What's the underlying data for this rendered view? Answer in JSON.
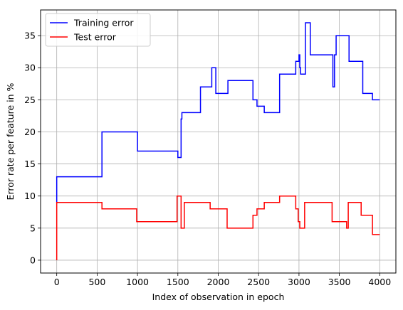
{
  "chart_data": {
    "type": "line",
    "title": "",
    "xlabel": "Index of observation in epoch",
    "ylabel": "Error rate per feature in %",
    "xlim": [
      -200,
      4200
    ],
    "ylim": [
      -2,
      39
    ],
    "xticks": [
      0,
      500,
      1000,
      1500,
      2000,
      2500,
      3000,
      3500,
      4000
    ],
    "yticks": [
      0,
      5,
      10,
      15,
      20,
      25,
      30,
      35
    ],
    "grid": true,
    "legend": "upper-left",
    "series": [
      {
        "name": "Training error",
        "color": "#0000ff",
        "x": [
          0,
          0,
          560,
          560,
          1000,
          1000,
          1500,
          1500,
          1540,
          1540,
          1550,
          1550,
          1780,
          1780,
          1920,
          1920,
          1970,
          1970,
          2120,
          2120,
          2430,
          2430,
          2480,
          2480,
          2570,
          2570,
          2760,
          2760,
          2960,
          2960,
          3000,
          3000,
          3010,
          3010,
          3020,
          3020,
          3080,
          3080,
          3140,
          3140,
          3420,
          3420,
          3440,
          3440,
          3460,
          3460,
          3620,
          3620,
          3790,
          3790,
          3910,
          3910,
          4000
        ],
        "y": [
          9,
          13,
          13,
          20,
          20,
          17,
          17,
          16,
          16,
          22,
          22,
          23,
          23,
          27,
          27,
          30,
          30,
          26,
          26,
          28,
          28,
          25,
          25,
          24,
          24,
          23,
          23,
          29,
          29,
          31,
          31,
          32,
          32,
          30,
          30,
          29,
          29,
          37,
          37,
          32,
          32,
          27,
          27,
          32,
          32,
          35,
          35,
          31,
          31,
          26,
          26,
          25,
          25
        ]
      },
      {
        "name": "Test error",
        "color": "#ff0000",
        "x": [
          0,
          0,
          560,
          560,
          990,
          990,
          1490,
          1490,
          1540,
          1540,
          1580,
          1580,
          1900,
          1900,
          2110,
          2110,
          2430,
          2430,
          2480,
          2480,
          2570,
          2570,
          2760,
          2760,
          2960,
          2960,
          2990,
          2990,
          3010,
          3010,
          3070,
          3070,
          3410,
          3410,
          3590,
          3590,
          3610,
          3610,
          3770,
          3770,
          3910,
          3910,
          4000
        ],
        "y": [
          0,
          9,
          9,
          8,
          8,
          6,
          6,
          10,
          10,
          5,
          5,
          9,
          9,
          8,
          8,
          5,
          5,
          7,
          7,
          8,
          8,
          9,
          9,
          10,
          10,
          8,
          8,
          6,
          6,
          5,
          5,
          9,
          9,
          6,
          6,
          5,
          5,
          9,
          9,
          7,
          7,
          4,
          4
        ]
      }
    ]
  }
}
